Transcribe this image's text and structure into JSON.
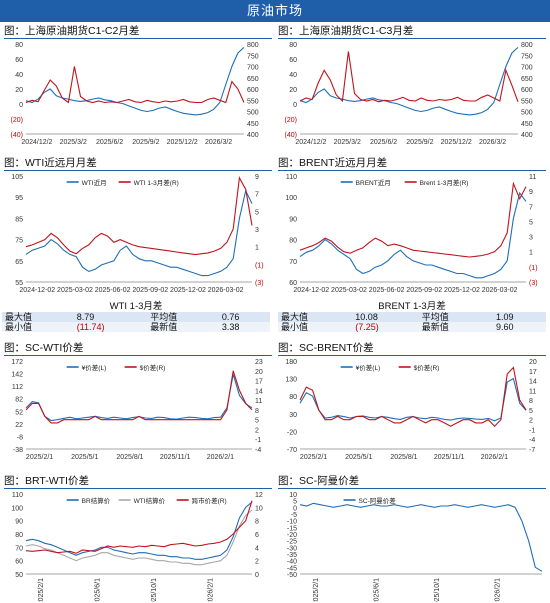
{
  "banner": "原油市场",
  "panels": {
    "p1": {
      "title": "图：上海原油期货C1-C2月差"
    },
    "p2": {
      "title": "图：上海原油期货C1-C3月差"
    },
    "p3": {
      "title": "图：WTI近远月月差"
    },
    "p4": {
      "title": "图：BRENT近远月月差"
    },
    "p5": {
      "title": "图：SC-WTI价差"
    },
    "p6": {
      "title": "图：SC-BRENT价差"
    },
    "p7": {
      "title": "图：BRT-WTI价差"
    },
    "p8": {
      "title": "图：SC-阿曼价差"
    }
  },
  "tables": {
    "wti": {
      "caption": "WTI 1-3月差",
      "max_label": "最大值",
      "max": "8.79",
      "avg_label": "平均值",
      "avg": "0.76",
      "min_label": "最小值",
      "min": "(11.74)",
      "last_label": "最新值",
      "last": "3.38"
    },
    "brent": {
      "caption": "BRENT 1-3月差",
      "max_label": "最大值",
      "max": "10.08",
      "avg_label": "平均值",
      "avg": "1.09",
      "min_label": "最小值",
      "min": "(7.25)",
      "last_label": "最新值",
      "last": "9.60"
    }
  },
  "colors": {
    "blue": "#1f6fb8",
    "red": "#c0141c",
    "gray": "#a8a8a8",
    "banner": "#1f5ea8"
  },
  "chart_data": [
    {
      "id": "p1",
      "type": "line",
      "x_labels": [
        "2024/12/2",
        "2025/3/2",
        "2025/6/2",
        "2025/9/2",
        "2025/12/2",
        "2026/3/2"
      ],
      "y_left_ticks": [
        "80",
        "60",
        "40",
        "20",
        "0",
        "(20)",
        "(40)"
      ],
      "ylim_left": [
        -40,
        80
      ],
      "y_right_ticks": [
        "800",
        "750",
        "700",
        "650",
        "600",
        "550",
        "500",
        "450",
        "400"
      ],
      "ylim_right": [
        400,
        800
      ],
      "series": [
        {
          "axis": "right",
          "color": "#1f6fb8",
          "values": [
            548,
            540,
            555,
            585,
            600,
            570,
            560,
            555,
            548,
            545,
            548,
            555,
            560,
            552,
            548,
            540,
            535,
            525,
            515,
            505,
            500,
            505,
            515,
            520,
            510,
            500,
            492,
            488,
            485,
            488,
            495,
            510,
            540,
            620,
            700,
            760,
            785
          ]
        },
        {
          "axis": "left",
          "color": "#c0141c",
          "values": [
            2,
            5,
            3,
            18,
            32,
            24,
            8,
            2,
            50,
            10,
            4,
            2,
            4,
            2,
            3,
            2,
            4,
            6,
            3,
            2,
            5,
            3,
            2,
            4,
            3,
            4,
            6,
            3,
            2,
            2,
            6,
            8,
            5,
            2,
            30,
            20,
            2
          ]
        }
      ]
    },
    {
      "id": "p2",
      "type": "line",
      "x_labels": [
        "2024/12/2",
        "2025/3/2",
        "2025/6/2",
        "2025/9/2",
        "2025/12/2",
        "2026/3/2"
      ],
      "y_left_ticks": [
        "80",
        "60",
        "40",
        "20",
        "0",
        "(20)",
        "(40)"
      ],
      "ylim_left": [
        -40,
        80
      ],
      "y_right_ticks": [
        "800",
        "750",
        "700",
        "650",
        "600",
        "550",
        "500",
        "450",
        "400"
      ],
      "ylim_right": [
        400,
        800
      ],
      "series": [
        {
          "axis": "right",
          "color": "#1f6fb8",
          "values": [
            548,
            540,
            555,
            585,
            600,
            570,
            560,
            555,
            548,
            545,
            548,
            555,
            560,
            552,
            548,
            540,
            535,
            525,
            515,
            505,
            500,
            505,
            515,
            520,
            510,
            500,
            492,
            488,
            485,
            488,
            495,
            510,
            540,
            620,
            700,
            760,
            785
          ]
        },
        {
          "axis": "left",
          "color": "#c0141c",
          "values": [
            4,
            8,
            6,
            28,
            45,
            32,
            12,
            4,
            70,
            14,
            6,
            4,
            6,
            3,
            5,
            4,
            6,
            9,
            5,
            4,
            8,
            5,
            4,
            6,
            5,
            6,
            9,
            5,
            4,
            4,
            9,
            12,
            8,
            4,
            45,
            25,
            3
          ]
        }
      ]
    },
    {
      "id": "p3",
      "type": "line",
      "x_labels": [
        "2024-12-02",
        "2025-03-02",
        "2025-06-02",
        "2025-09-02",
        "2025-12-02",
        "2026-03-02"
      ],
      "y_left_ticks": [
        "105",
        "95",
        "85",
        "75",
        "65",
        "55"
      ],
      "ylim_left": [
        55,
        105
      ],
      "y_right_ticks": [
        "9",
        "7",
        "5",
        "3",
        "1",
        "(1)",
        "(3)"
      ],
      "ylim_right": [
        -3,
        9
      ],
      "legend": [
        "WTI近月",
        "WTI 1-3月差(R)"
      ],
      "series": [
        {
          "name": "WTI近月",
          "axis": "left",
          "color": "#1f6fb8",
          "values": [
            68,
            70,
            71,
            72,
            75,
            73,
            70,
            68,
            67,
            62,
            60,
            61,
            63,
            64,
            65,
            70,
            72,
            68,
            66,
            65,
            65,
            64,
            63,
            62,
            62,
            61,
            60,
            59,
            58,
            58,
            59,
            60,
            62,
            66,
            85,
            98,
            92
          ]
        },
        {
          "name": "WTI 1-3月差(R)",
          "axis": "right",
          "color": "#c0141c",
          "values": [
            1.0,
            1.2,
            1.5,
            1.8,
            2.5,
            2.0,
            1.2,
            0.5,
            0.2,
            0.8,
            1.2,
            2.0,
            2.5,
            2.2,
            1.5,
            1.8,
            1.5,
            1.2,
            1.0,
            0.9,
            0.8,
            0.7,
            0.6,
            0.5,
            0.4,
            0.3,
            0.2,
            0.1,
            0.2,
            0.3,
            0.5,
            0.8,
            1.5,
            3.0,
            8.8,
            7.5,
            3.4
          ]
        }
      ]
    },
    {
      "id": "p4",
      "type": "line",
      "x_labels": [
        "2024-12-02",
        "2025-03-02",
        "2025-06-02",
        "2025-09-02",
        "2025-12-02",
        "2026-03-02"
      ],
      "y_left_ticks": [
        "110",
        "100",
        "90",
        "80",
        "70",
        "60"
      ],
      "ylim_left": [
        60,
        110
      ],
      "y_right_ticks": [
        "11",
        "9",
        "7",
        "5",
        "3",
        "1",
        "(1)",
        "(3)"
      ],
      "ylim_right": [
        -3,
        11
      ],
      "legend": [
        "BRENT近月",
        "Brent 1-3月差(R)"
      ],
      "series": [
        {
          "name": "BRENT近月",
          "axis": "left",
          "color": "#1f6fb8",
          "values": [
            72,
            74,
            75,
            77,
            80,
            78,
            75,
            73,
            71,
            66,
            64,
            65,
            67,
            68,
            70,
            73,
            75,
            72,
            70,
            69,
            68,
            68,
            67,
            66,
            65,
            64,
            64,
            63,
            62,
            62,
            63,
            64,
            66,
            70,
            90,
            102,
            98
          ]
        },
        {
          "name": "Brent 1-3月差(R)",
          "axis": "right",
          "color": "#c0141c",
          "values": [
            1.2,
            1.5,
            1.8,
            2.2,
            2.8,
            2.4,
            1.6,
            1.0,
            0.8,
            1.2,
            1.5,
            2.2,
            2.8,
            2.4,
            1.8,
            2.0,
            1.8,
            1.5,
            1.2,
            1.1,
            1.0,
            0.9,
            0.8,
            0.7,
            0.6,
            0.5,
            0.4,
            0.3,
            0.4,
            0.5,
            0.7,
            1.0,
            1.8,
            3.5,
            10.0,
            8.0,
            9.6
          ]
        }
      ]
    },
    {
      "id": "p5",
      "type": "line",
      "x_labels": [
        "2025/2/1",
        "2025/5/1",
        "2025/8/1",
        "2025/11/1",
        "2026/2/1"
      ],
      "y_left_ticks": [
        "172",
        "142",
        "112",
        "82",
        "52",
        "22",
        "-8",
        "-38"
      ],
      "ylim_left": [
        -38,
        172
      ],
      "y_right_ticks": [
        "23",
        "20",
        "17",
        "14",
        "11",
        "8",
        "5",
        "2",
        "-1",
        "-4"
      ],
      "ylim_right": [
        -4,
        23
      ],
      "legend": [
        "¥价差(L)",
        "$价差(R)"
      ],
      "series": [
        {
          "name": "¥价差(L)",
          "axis": "left",
          "color": "#1f6fb8",
          "values": [
            60,
            75,
            72,
            40,
            30,
            32,
            35,
            38,
            34,
            36,
            38,
            40,
            37,
            35,
            38,
            36,
            34,
            37,
            39,
            36,
            35,
            38,
            37,
            34,
            33,
            36,
            38,
            37,
            35,
            34,
            37,
            38,
            60,
            140,
            90,
            70,
            60
          ]
        },
        {
          "name": "$价差(R)",
          "axis": "right",
          "color": "#c0141c",
          "values": [
            8,
            10,
            10,
            6,
            4,
            4,
            5,
            5,
            5,
            5,
            5,
            6,
            5,
            5,
            5,
            5,
            5,
            5,
            6,
            5,
            5,
            5,
            5,
            5,
            5,
            5,
            5,
            5,
            5,
            5,
            5,
            5,
            8,
            20,
            14,
            10,
            8
          ]
        }
      ]
    },
    {
      "id": "p6",
      "type": "line",
      "x_labels": [
        "2025/2/1",
        "2025/5/1",
        "2025/8/1",
        "2025/11/1",
        "2026/2/1"
      ],
      "y_left_ticks": [
        "180",
        "130",
        "80",
        "30",
        "-20",
        "-70"
      ],
      "ylim_left": [
        -70,
        180
      ],
      "y_right_ticks": [
        "20",
        "17",
        "14",
        "11",
        "8",
        "5",
        "2",
        "-1",
        "-4",
        "-7"
      ],
      "ylim_right": [
        -7,
        20
      ],
      "legend": [
        "¥价差(L)",
        "$价差(R)"
      ],
      "series": [
        {
          "name": "¥价差(L)",
          "axis": "left",
          "color": "#1f6fb8",
          "values": [
            60,
            90,
            80,
            40,
            18,
            20,
            25,
            22,
            18,
            22,
            24,
            20,
            18,
            22,
            20,
            16,
            14,
            20,
            22,
            18,
            16,
            20,
            18,
            14,
            12,
            16,
            18,
            17,
            15,
            14,
            17,
            10,
            18,
            120,
            130,
            60,
            40
          ]
        },
        {
          "name": "$价差(R)",
          "axis": "right",
          "color": "#c0141c",
          "values": [
            8,
            12,
            11,
            5,
            2,
            2,
            3,
            2,
            2,
            3,
            3,
            2,
            2,
            3,
            2,
            1,
            1,
            2,
            3,
            2,
            1,
            2,
            2,
            1,
            0,
            1,
            2,
            2,
            1,
            1,
            2,
            0,
            2,
            16,
            18,
            8,
            5
          ]
        }
      ]
    },
    {
      "id": "p7",
      "type": "line",
      "x_labels": [
        "2025/2/1",
        "2025/6/1",
        "2025/10/1",
        "2026/2/1"
      ],
      "y_left_ticks": [
        "110",
        "100",
        "90",
        "80",
        "70",
        "60",
        "50"
      ],
      "ylim_left": [
        50,
        110
      ],
      "y_right_ticks": [
        "12",
        "10",
        "8",
        "6",
        "4",
        "2",
        "0"
      ],
      "ylim_right": [
        0,
        12
      ],
      "legend": [
        "BR结算价",
        "WTI结算价",
        "跨市价差(R)"
      ],
      "series": [
        {
          "name": "BR结算价",
          "axis": "left",
          "color": "#1f6fb8",
          "values": [
            75,
            76,
            75,
            73,
            72,
            70,
            68,
            66,
            64,
            66,
            67,
            68,
            70,
            70,
            68,
            67,
            66,
            65,
            66,
            66,
            65,
            64,
            64,
            63,
            63,
            62,
            62,
            61,
            61,
            62,
            63,
            64,
            68,
            78,
            92,
            100,
            104
          ]
        },
        {
          "name": "WTI结算价",
          "axis": "left",
          "color": "#a8a8a8",
          "values": [
            71,
            72,
            71,
            69,
            68,
            66,
            64,
            62,
            60,
            62,
            63,
            64,
            66,
            66,
            64,
            63,
            62,
            61,
            62,
            62,
            61,
            60,
            60,
            59,
            59,
            58,
            58,
            57,
            57,
            58,
            59,
            60,
            64,
            74,
            86,
            94,
            98
          ]
        },
        {
          "name": "跨市价差(R)",
          "axis": "right",
          "color": "#c0141c",
          "values": [
            3.5,
            3.4,
            3.5,
            3.6,
            3.4,
            3.2,
            3.3,
            3.4,
            3.1,
            3.6,
            3.5,
            3.4,
            3.8,
            4.2,
            4.0,
            4.2,
            4.1,
            4.0,
            4.2,
            4.1,
            4.3,
            4.2,
            4.1,
            4.4,
            4.5,
            4.6,
            4.4,
            4.2,
            4.3,
            4.5,
            4.6,
            4.8,
            5.2,
            6.0,
            7.0,
            8.0,
            11.0
          ]
        }
      ]
    },
    {
      "id": "p8",
      "type": "line",
      "x_labels": [
        "2025/2/1",
        "2025/6/1",
        "2025/10/1",
        "2026/2/1"
      ],
      "y_left_ticks": [
        "10",
        "5",
        "0",
        "-5",
        "-10",
        "-15",
        "-20",
        "-25",
        "-30",
        "-35",
        "-40",
        "-45",
        "-50"
      ],
      "ylim_left": [
        -50,
        10
      ],
      "legend": [
        "SC-阿曼价差"
      ],
      "series": [
        {
          "name": "SC-阿曼价差",
          "axis": "left",
          "color": "#1f6fb8",
          "values": [
            2,
            1,
            3,
            2,
            1,
            0,
            1,
            2,
            1,
            0,
            1,
            2,
            1,
            1,
            2,
            1,
            0,
            1,
            2,
            1,
            0,
            1,
            1,
            2,
            1,
            0,
            1,
            2,
            1,
            0,
            1,
            2,
            0,
            -10,
            -25,
            -45,
            -48
          ]
        }
      ]
    }
  ]
}
